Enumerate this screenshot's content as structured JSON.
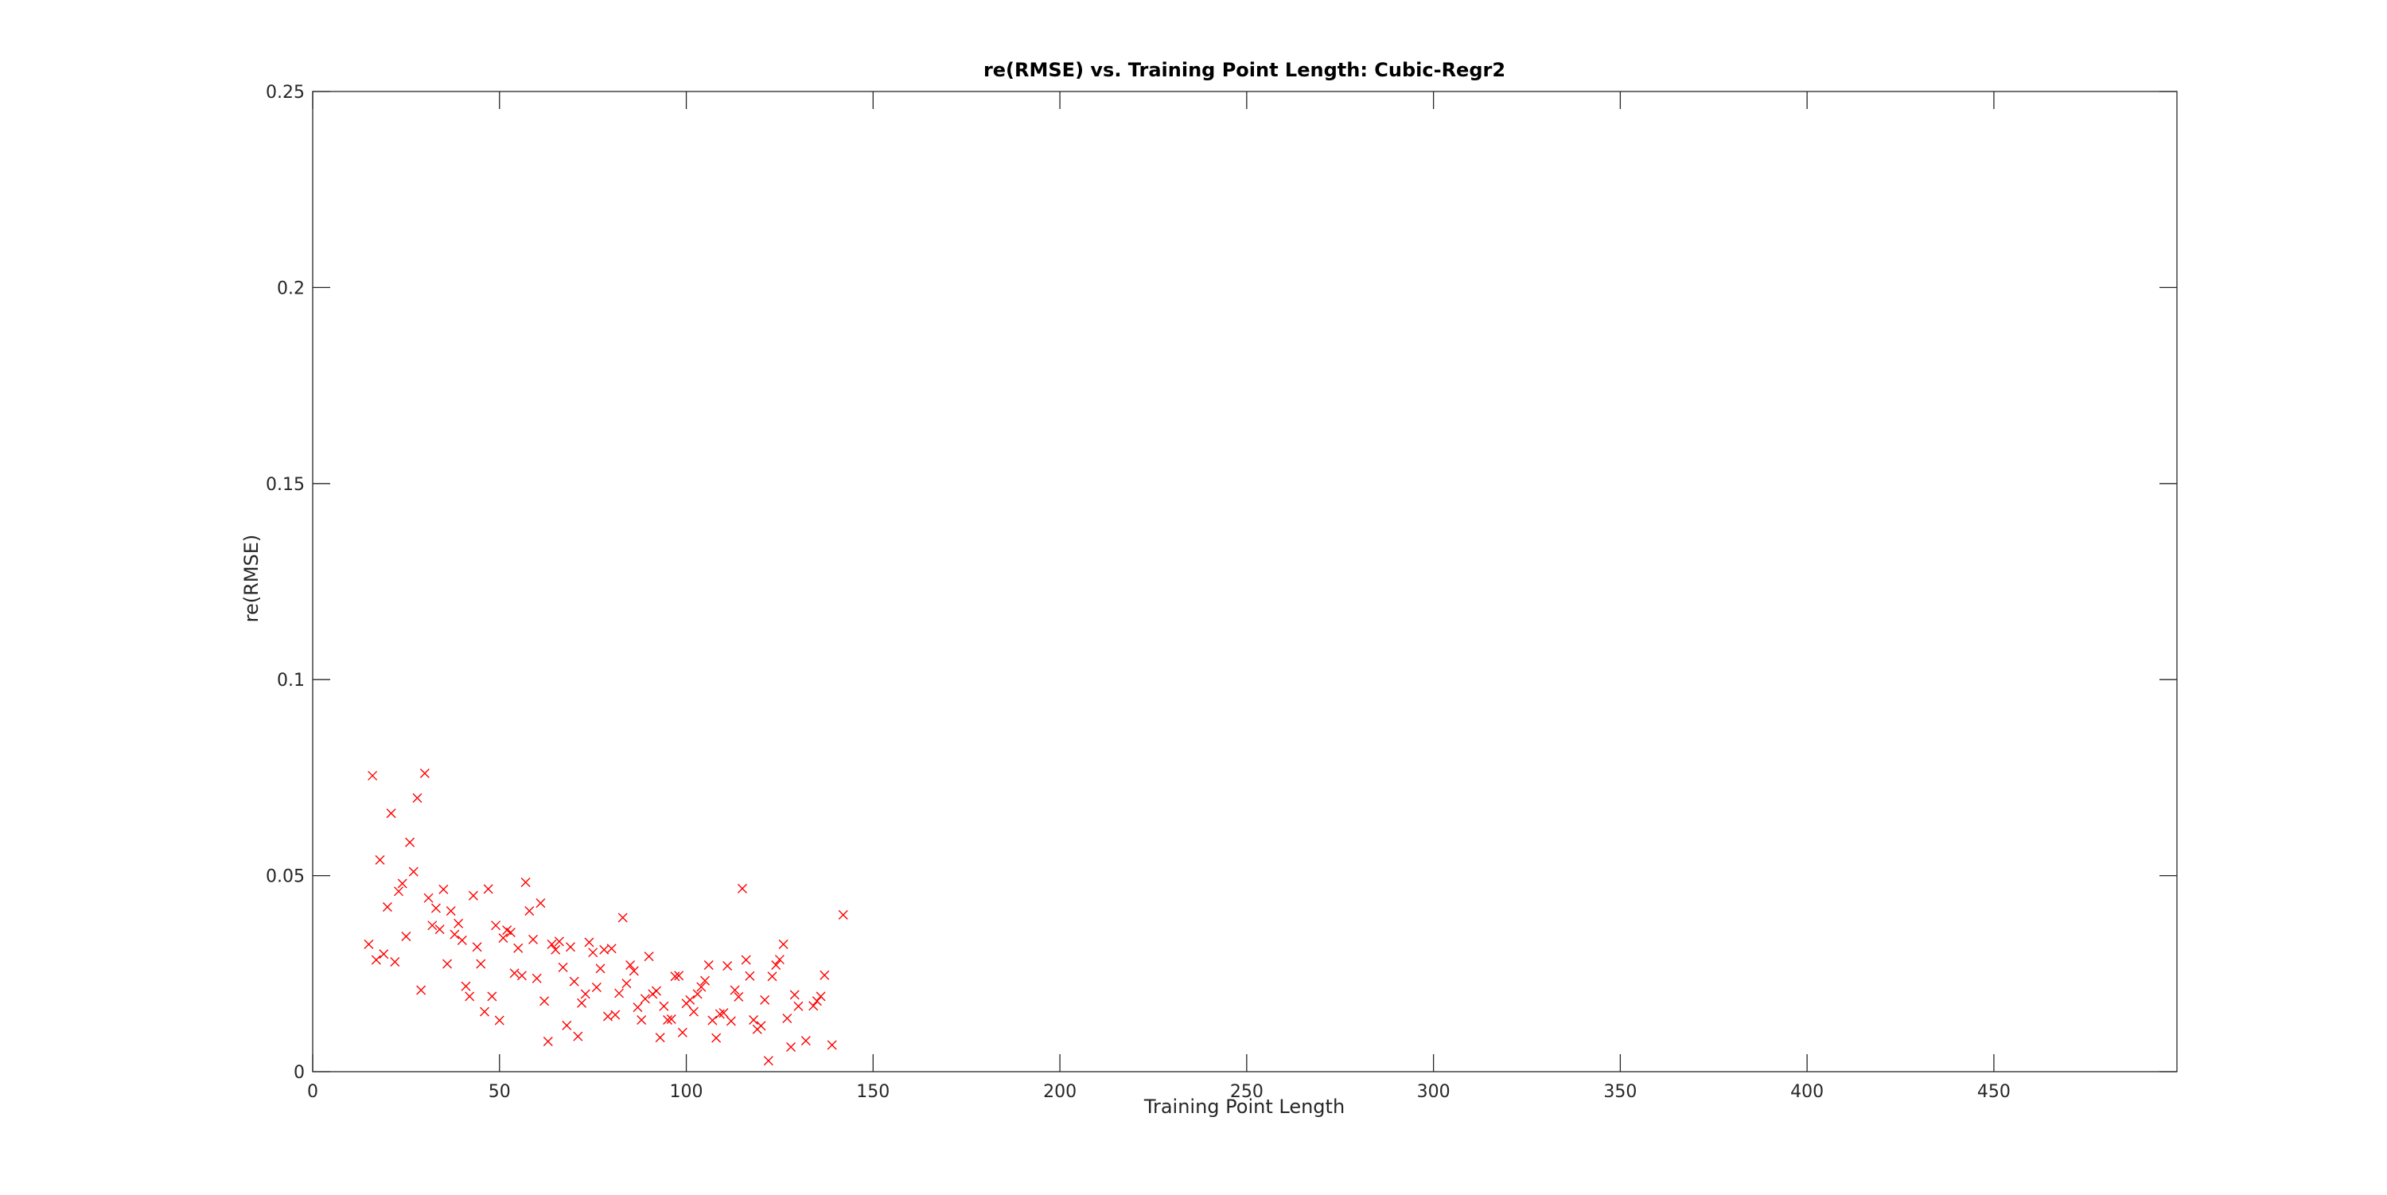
{
  "chart_data": {
    "type": "scatter",
    "title": "re(RMSE) vs. Training Point Length: Cubic-Regr2",
    "xlabel": "Training Point Length",
    "ylabel": "re(RMSE)",
    "xlim": [
      0,
      499
    ],
    "ylim": [
      0,
      0.25
    ],
    "xticks": [
      0,
      50,
      100,
      150,
      200,
      250,
      300,
      350,
      400,
      450
    ],
    "xtick_labels": [
      "0",
      "50",
      "100",
      "150",
      "200",
      "250",
      "300",
      "350",
      "400",
      "450"
    ],
    "yticks": [
      0,
      0.05,
      0.1,
      0.15,
      0.2,
      0.25
    ],
    "ytick_labels": [
      "0",
      "0.05",
      "0.1",
      "0.15",
      "0.2",
      "0.25"
    ],
    "grid": false,
    "legend": "none",
    "marker": "x",
    "marker_color": "#ff0000",
    "series": [
      {
        "x": [
          15,
          16,
          17,
          18,
          19,
          20,
          21,
          22,
          23,
          24,
          25,
          26,
          27,
          28,
          29,
          30,
          31,
          32,
          33,
          34,
          35,
          36,
          37,
          38,
          39,
          40,
          41,
          42,
          43,
          44,
          45,
          46,
          47,
          48,
          49,
          50,
          51,
          52,
          53,
          54,
          55,
          56,
          57,
          58,
          59,
          60,
          61,
          62,
          63,
          64,
          65,
          66,
          67,
          68,
          69,
          70,
          71,
          72,
          73,
          74,
          75,
          76,
          77,
          78,
          79,
          80,
          81,
          82,
          83,
          84,
          85,
          86,
          87,
          88,
          89,
          90,
          91,
          92,
          93,
          94,
          95,
          96,
          97,
          98,
          99,
          100,
          101,
          102,
          103,
          104,
          105,
          106,
          107,
          108,
          109,
          110,
          111,
          112,
          113,
          114,
          115,
          116,
          117,
          118,
          119,
          120,
          121,
          122,
          123,
          124,
          125,
          126,
          127,
          128,
          129,
          130,
          132,
          134,
          135,
          136,
          137,
          139,
          142
        ],
        "y": [
          0.0325,
          0.0755,
          0.0285,
          0.054,
          0.03,
          0.042,
          0.0659,
          0.028,
          0.046,
          0.048,
          0.0345,
          0.0585,
          0.051,
          0.0698,
          0.0208,
          0.0761,
          0.0443,
          0.0373,
          0.0417,
          0.0363,
          0.0465,
          0.0275,
          0.041,
          0.035,
          0.0378,
          0.0335,
          0.0218,
          0.0192,
          0.0449,
          0.0318,
          0.0275,
          0.0153,
          0.0466,
          0.0192,
          0.0373,
          0.0131,
          0.0341,
          0.0361,
          0.0355,
          0.0251,
          0.0315,
          0.0245,
          0.0483,
          0.041,
          0.0337,
          0.0238,
          0.043,
          0.018,
          0.0077,
          0.0325,
          0.0311,
          0.0332,
          0.0266,
          0.0118,
          0.0318,
          0.023,
          0.009,
          0.0175,
          0.0198,
          0.033,
          0.0304,
          0.0215,
          0.0263,
          0.0311,
          0.0141,
          0.0314,
          0.0145,
          0.02,
          0.0393,
          0.0225,
          0.0272,
          0.0257,
          0.0164,
          0.0132,
          0.0186,
          0.0294,
          0.0198,
          0.0206,
          0.0087,
          0.0167,
          0.0132,
          0.0134,
          0.0243,
          0.0245,
          0.01,
          0.0174,
          0.0183,
          0.0153,
          0.0198,
          0.0216,
          0.0232,
          0.0272,
          0.0131,
          0.0086,
          0.0147,
          0.015,
          0.027,
          0.0129,
          0.0208,
          0.0191,
          0.0467,
          0.0285,
          0.0244,
          0.0132,
          0.0108,
          0.0117,
          0.0183,
          0.0028,
          0.0243,
          0.0272,
          0.0286,
          0.0325,
          0.0136,
          0.0063,
          0.0196,
          0.0167,
          0.0079,
          0.0168,
          0.018,
          0.0192,
          0.0246,
          0.0068,
          0.04
        ]
      }
    ]
  }
}
